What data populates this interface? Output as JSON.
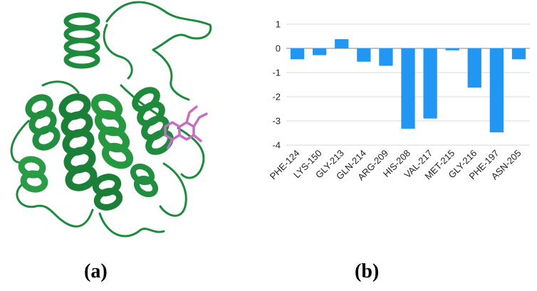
{
  "panels": {
    "a_label": "(a)",
    "b_label": "(b)"
  },
  "image": {
    "ribbon_color": "#1e8a3c",
    "ligand_color": "#c46fc0"
  },
  "chart_data": {
    "type": "bar",
    "categories": [
      "PHE-124",
      "LYS-150",
      "GLY-213",
      "GLN-214",
      "ARG-209",
      "HIS-208",
      "VAL-217",
      "MET-215",
      "GLY-216",
      "PHE-197",
      "ASN-205"
    ],
    "values": [
      -0.45,
      -0.28,
      0.38,
      -0.55,
      -0.72,
      -3.32,
      -2.9,
      -0.08,
      -1.62,
      -3.47,
      -0.45
    ],
    "ylim": [
      -4,
      1
    ],
    "yticks": [
      1,
      0,
      -1,
      -2,
      -3,
      -4
    ],
    "grid": true,
    "bar_color": "#2196f3",
    "title": "",
    "xlabel": "",
    "ylabel": ""
  }
}
